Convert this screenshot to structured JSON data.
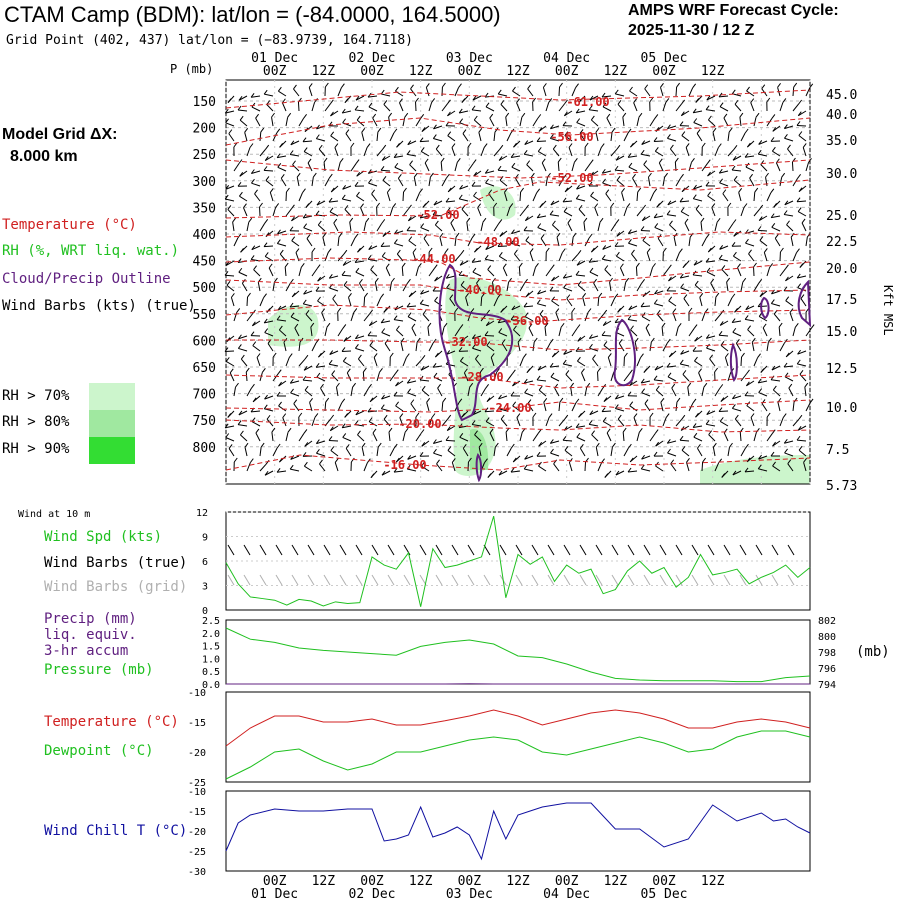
{
  "header": {
    "title": "CTAM Camp (BDM):  lat/lon = (-84.0000, 164.5000)",
    "subtitle": "Grid Point (402, 437) lat/lon = (−83.9739, 164.7118)",
    "cycle_line1": "AMPS WRF Forecast Cycle:",
    "cycle_line2": "2025-11-30 / 12  Z",
    "grid_line1": "Model Grid ΔX:",
    "grid_line2": "8.000 km"
  },
  "colors": {
    "temperature": "#d02020",
    "rh": "#20c020",
    "cloud": "#602080",
    "wind": "#000000",
    "grid_wind": "#b0b0b0",
    "wind_chill": "#1010a0",
    "rh70": "#ccf5cc",
    "rh80": "#a0e8a0",
    "rh90": "#33dd33"
  },
  "time_axis": {
    "top_days": [
      "01 Dec",
      "02 Dec",
      "03 Dec",
      "04 Dec",
      "05 Dec"
    ],
    "hour_labels": [
      "00Z",
      "12Z",
      "00Z",
      "12Z",
      "00Z",
      "12Z",
      "00Z",
      "12Z",
      "00Z",
      "12Z"
    ],
    "bottom_days": [
      "01 Dec",
      "02 Dec",
      "03 Dec",
      "04 Dec",
      "05 Dec"
    ]
  },
  "profile": {
    "p_axis_label": "P (mb)",
    "pressure_ticks": [
      "150",
      "200",
      "250",
      "300",
      "350",
      "400",
      "450",
      "500",
      "550",
      "600",
      "650",
      "700",
      "750",
      "800"
    ],
    "height_axis_label": "Kft MSL",
    "height_ticks": [
      "45.0",
      "40.0",
      "35.0",
      "30.0",
      "25.0",
      "22.5",
      "20.0",
      "17.5",
      "15.0",
      "12.5",
      "10.0",
      "7.5",
      "5.73"
    ],
    "legend": [
      {
        "label": "Temperature (°C)",
        "color": "#d02020"
      },
      {
        "label": "RH (%, WRT liq. wat.)",
        "color": "#20c020"
      },
      {
        "label": "Cloud/Precip Outline",
        "color": "#602080"
      },
      {
        "label": "Wind Barbs (kts) (true)",
        "color": "#000000"
      }
    ],
    "rh_legend": [
      "RH > 70%",
      "RH > 80%",
      "RH > 90%"
    ],
    "temp_labels": [
      "-61.00",
      "-56.00",
      "-52.00",
      "-52.00",
      "-48.00",
      "-44.00",
      "-40.00",
      "-36.00",
      "-32.00",
      "-28.00",
      "-24.00",
      "-20.00",
      "-16.00"
    ]
  },
  "wind_panel": {
    "title": "Wind at 10 m",
    "labels": [
      "Wind Spd (kts)",
      "Wind Barbs (true)",
      "Wind Barbs (grid)"
    ],
    "y_ticks": [
      "12",
      "9",
      "6",
      "3",
      "0"
    ]
  },
  "precip_panel": {
    "labels": [
      "Precip (mm)",
      "liq. equiv.",
      "3-hr accum",
      "Pressure (mb)"
    ],
    "left_ticks": [
      "2.5",
      "2.0",
      "1.5",
      "1.0",
      "0.5",
      "0.0"
    ],
    "right_ticks": [
      "802",
      "800",
      "798",
      "796",
      "794"
    ],
    "right_unit": "(mb)"
  },
  "temp_panel": {
    "labels": [
      "Temperature (°C)",
      "Dewpoint (°C)"
    ],
    "y_ticks": [
      "-10",
      "-15",
      "-20",
      "-25"
    ]
  },
  "chill_panel": {
    "labels": [
      "Wind Chill T (°C)"
    ],
    "y_ticks": [
      "-10",
      "-15",
      "-20",
      "-25",
      "-30"
    ]
  },
  "chart_data": [
    {
      "type": "line",
      "title": "Wind at 10 m",
      "ylim": [
        0,
        12
      ],
      "x": [
        0,
        3,
        6,
        9,
        12,
        15,
        18,
        21,
        24,
        27,
        30,
        33,
        36,
        39,
        42,
        45,
        48,
        51,
        54,
        57,
        60,
        63,
        66,
        69,
        72,
        75,
        78,
        81,
        84,
        87,
        90,
        93,
        96,
        99,
        102,
        105,
        108,
        111,
        114,
        117,
        120,
        123,
        126,
        129,
        132,
        135,
        138,
        141,
        144
      ],
      "series": [
        {
          "name": "Wind Spd (kts)",
          "values": [
            5.8,
            3.2,
            1.6,
            1.4,
            1.2,
            0.6,
            1.3,
            1.1,
            0.5,
            1.0,
            0.8,
            0.9,
            6.5,
            5.5,
            5.0,
            7.0,
            0.4,
            7.5,
            5.2,
            5.5,
            6.0,
            6.5,
            11.5,
            1.5,
            6.8,
            5.6,
            6.5,
            3.5,
            5.5,
            4.5,
            5.0,
            2.0,
            2.5,
            4.8,
            6.0,
            4.5,
            5.2,
            2.8,
            4.0,
            6.8,
            4.3,
            4.6,
            5.0,
            3.2,
            4.0,
            4.6,
            5.5,
            4.0,
            5.2
          ]
        }
      ]
    },
    {
      "type": "line",
      "title": "Pressure",
      "ylim": [
        794,
        802
      ],
      "x": [
        0,
        6,
        12,
        18,
        24,
        30,
        36,
        42,
        48,
        54,
        60,
        66,
        72,
        78,
        84,
        90,
        96,
        102,
        108,
        114,
        120,
        126,
        132,
        138,
        144
      ],
      "series": [
        {
          "name": "Pressure (mb)",
          "values": [
            801,
            799.6,
            799.2,
            798.5,
            798.2,
            798.0,
            797.8,
            797.6,
            798.7,
            799.2,
            799.5,
            799.0,
            797.5,
            797.3,
            796.5,
            795.5,
            794.7,
            794.5,
            794.4,
            794.4,
            794.4,
            794.3,
            794.3,
            794.8,
            795.0
          ]
        },
        {
          "name": "Precip (mm)",
          "values": [
            0,
            0,
            0,
            0,
            0,
            0,
            0,
            0,
            0,
            0,
            0.01,
            0,
            0,
            0,
            0,
            0,
            0,
            0,
            0,
            0,
            0,
            0,
            0,
            0,
            0
          ]
        }
      ]
    },
    {
      "type": "line",
      "title": "Temperature / Dewpoint",
      "ylim": [
        -25,
        -10
      ],
      "x": [
        0,
        6,
        12,
        18,
        24,
        30,
        36,
        42,
        48,
        54,
        60,
        66,
        72,
        78,
        84,
        90,
        96,
        102,
        108,
        114,
        120,
        126,
        132,
        138,
        144
      ],
      "series": [
        {
          "name": "Temperature (°C)",
          "values": [
            -19,
            -16,
            -14,
            -14,
            -15,
            -15,
            -14.5,
            -15.5,
            -15.5,
            -14.8,
            -14,
            -13,
            -14,
            -15.5,
            -14.5,
            -13.5,
            -13,
            -13.5,
            -14.5,
            -16,
            -16,
            -15,
            -14.5,
            -15,
            -16
          ]
        },
        {
          "name": "Dewpoint (°C)",
          "values": [
            -24.5,
            -22.5,
            -20,
            -19.5,
            -21.5,
            -23,
            -22,
            -20,
            -20,
            -19,
            -18,
            -17.5,
            -18,
            -20,
            -20.5,
            -19.5,
            -18.5,
            -17.5,
            -18.5,
            -20,
            -19.5,
            -17.5,
            -16.5,
            -16.5,
            -17.5
          ]
        }
      ]
    },
    {
      "type": "line",
      "title": "Wind Chill T",
      "ylim": [
        -30,
        -10
      ],
      "x": [
        0,
        3,
        6,
        12,
        18,
        24,
        30,
        36,
        39,
        42,
        45,
        48,
        51,
        54,
        57,
        60,
        63,
        66,
        69,
        72,
        75,
        78,
        84,
        90,
        96,
        102,
        108,
        114,
        120,
        126,
        132,
        135,
        138,
        141,
        144
      ],
      "series": [
        {
          "name": "Wind Chill T (°C)",
          "values": [
            -25,
            -18,
            -16,
            -14.5,
            -15,
            -15,
            -14.5,
            -14.5,
            -22.5,
            -22,
            -21,
            -14,
            -21.5,
            -20.5,
            -19,
            -21,
            -27,
            -15,
            -22,
            -16,
            -15,
            -14,
            -13,
            -13,
            -19.5,
            -19.5,
            -24,
            -22,
            -13.5,
            -17.5,
            -15.5,
            -17.5,
            -17,
            -19,
            -20.5
          ]
        }
      ]
    }
  ]
}
